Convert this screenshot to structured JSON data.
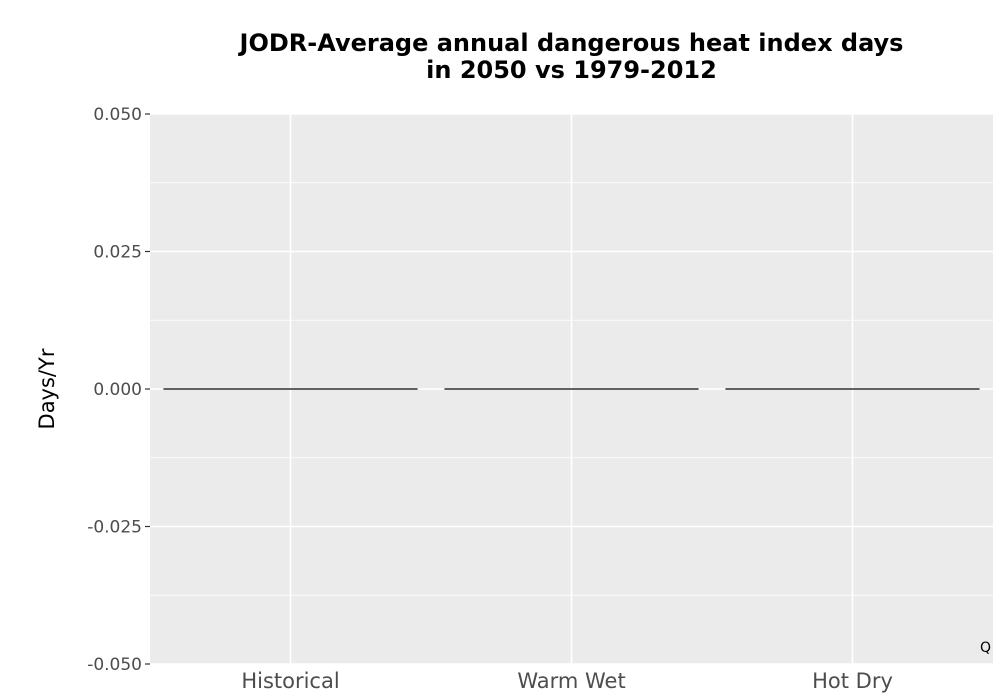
{
  "chart_data": {
    "type": "bar",
    "title_lines": [
      "JODR-Average annual dangerous heat index days",
      "in 2050 vs 1979-2012"
    ],
    "xlabel": "",
    "ylabel": "Days/Yr",
    "categories": [
      "Historical",
      "Warm Wet",
      "Hot Dry"
    ],
    "values": [
      0,
      0,
      0
    ],
    "ylim": [
      -0.05,
      0.05
    ],
    "yticks": [
      "0.050",
      "0.025",
      "0.000",
      "-0.025",
      "-0.050"
    ],
    "ytick_values": [
      0.05,
      0.025,
      0,
      -0.025,
      -0.05
    ],
    "grid": true,
    "legend": "none"
  },
  "corner_mark": "Q",
  "colors": {
    "panel_background": "#ebebeb",
    "grid": "#ffffff",
    "bar_outline": "#000000",
    "tick_text": "#4d4d4d"
  }
}
